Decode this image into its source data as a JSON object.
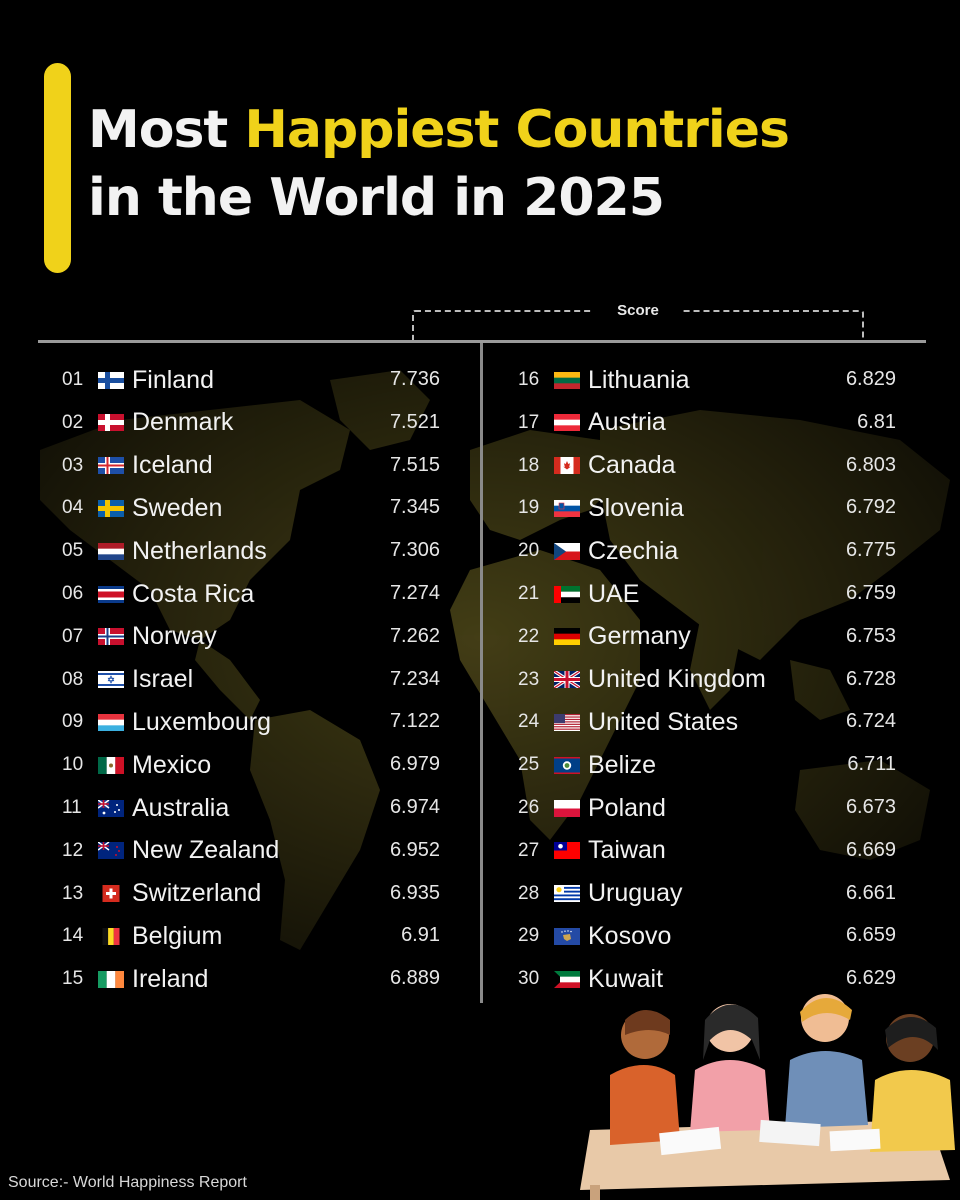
{
  "header": {
    "title_part1": "Most ",
    "title_highlight": "Happiest Countries",
    "title_line2": "in the World in 2025"
  },
  "colors": {
    "accent": "#f0d21a",
    "background": "#000000"
  },
  "footer": {
    "source": "Source:- World Happiness Report"
  },
  "chart_data": {
    "type": "table",
    "title": "Most Happiest Countries in the World in 2025",
    "column_label": "Score",
    "rows": [
      {
        "rank": "01",
        "country": "Finland",
        "score": "7.736",
        "flag": "finland-flag-icon"
      },
      {
        "rank": "02",
        "country": "Denmark",
        "score": "7.521",
        "flag": "denmark-flag-icon"
      },
      {
        "rank": "03",
        "country": "Iceland",
        "score": "7.515",
        "flag": "iceland-flag-icon"
      },
      {
        "rank": "04",
        "country": "Sweden",
        "score": "7.345",
        "flag": "sweden-flag-icon"
      },
      {
        "rank": "05",
        "country": "Netherlands",
        "score": "7.306",
        "flag": "netherlands-flag-icon"
      },
      {
        "rank": "06",
        "country": "Costa Rica",
        "score": "7.274",
        "flag": "costa-rica-flag-icon"
      },
      {
        "rank": "07",
        "country": "Norway",
        "score": "7.262",
        "flag": "norway-flag-icon"
      },
      {
        "rank": "08",
        "country": "Israel",
        "score": "7.234",
        "flag": "israel-flag-icon"
      },
      {
        "rank": "09",
        "country": "Luxembourg",
        "score": "7.122",
        "flag": "luxembourg-flag-icon"
      },
      {
        "rank": "10",
        "country": "Mexico",
        "score": "6.979",
        "flag": "mexico-flag-icon"
      },
      {
        "rank": "11",
        "country": "Australia",
        "score": "6.974",
        "flag": "australia-flag-icon"
      },
      {
        "rank": "12",
        "country": "New Zealand",
        "score": "6.952",
        "flag": "new-zealand-flag-icon"
      },
      {
        "rank": "13",
        "country": "Switzerland",
        "score": "6.935",
        "flag": "switzerland-flag-icon"
      },
      {
        "rank": "14",
        "country": "Belgium",
        "score": "6.91",
        "flag": "belgium-flag-icon"
      },
      {
        "rank": "15",
        "country": "Ireland",
        "score": "6.889",
        "flag": "ireland-flag-icon"
      },
      {
        "rank": "16",
        "country": "Lithuania",
        "score": "6.829",
        "flag": "lithuania-flag-icon"
      },
      {
        "rank": "17",
        "country": "Austria",
        "score": "6.81",
        "flag": "austria-flag-icon"
      },
      {
        "rank": "18",
        "country": "Canada",
        "score": "6.803",
        "flag": "canada-flag-icon"
      },
      {
        "rank": "19",
        "country": "Slovenia",
        "score": "6.792",
        "flag": "slovenia-flag-icon"
      },
      {
        "rank": "20",
        "country": "Czechia",
        "score": "6.775",
        "flag": "czechia-flag-icon"
      },
      {
        "rank": "21",
        "country": "UAE",
        "score": "6.759",
        "flag": "uae-flag-icon"
      },
      {
        "rank": "22",
        "country": "Germany",
        "score": "6.753",
        "flag": "germany-flag-icon"
      },
      {
        "rank": "23",
        "country": "United Kingdom",
        "score": "6.728",
        "flag": "united-kingdom-flag-icon"
      },
      {
        "rank": "24",
        "country": "United States",
        "score": "6.724",
        "flag": "united-states-flag-icon"
      },
      {
        "rank": "25",
        "country": "Belize",
        "score": "6.711",
        "flag": "belize-flag-icon"
      },
      {
        "rank": "26",
        "country": "Poland",
        "score": "6.673",
        "flag": "poland-flag-icon"
      },
      {
        "rank": "27",
        "country": "Taiwan",
        "score": "6.669",
        "flag": "taiwan-flag-icon"
      },
      {
        "rank": "28",
        "country": "Uruguay",
        "score": "6.661",
        "flag": "uruguay-flag-icon"
      },
      {
        "rank": "29",
        "country": "Kosovo",
        "score": "6.659",
        "flag": "kosovo-flag-icon"
      },
      {
        "rank": "30",
        "country": "Kuwait",
        "score": "6.629",
        "flag": "kuwait-flag-icon"
      }
    ]
  }
}
